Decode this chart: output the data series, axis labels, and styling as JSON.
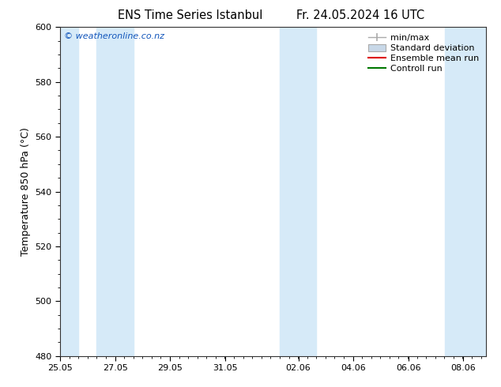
{
  "title_left": "ENS Time Series Istanbul",
  "title_right": "Fr. 24.05.2024 16 UTC",
  "ylabel": "Temperature 850 hPa (°C)",
  "ylim": [
    480,
    600
  ],
  "yticks": [
    480,
    500,
    520,
    540,
    560,
    580,
    600
  ],
  "xlim": [
    0,
    15.5
  ],
  "xtick_labels": [
    "25.05",
    "27.05",
    "29.05",
    "31.05",
    "02.06",
    "04.06",
    "06.06",
    "08.06"
  ],
  "xtick_positions": [
    0.0,
    2.0,
    4.0,
    6.0,
    8.67,
    10.67,
    12.67,
    14.67
  ],
  "shaded_bands": [
    {
      "x_start": 0.0,
      "x_end": 0.67,
      "color": "#d6eaf8"
    },
    {
      "x_start": 1.33,
      "x_end": 2.67,
      "color": "#d6eaf8"
    },
    {
      "x_start": 8.0,
      "x_end": 9.33,
      "color": "#d6eaf8"
    },
    {
      "x_start": 14.0,
      "x_end": 15.5,
      "color": "#d6eaf8"
    }
  ],
  "legend_entries": [
    "min/max",
    "Standard deviation",
    "Ensemble mean run",
    "Controll run"
  ],
  "minmax_color": "#aaaaaa",
  "std_facecolor": "#c8d8e8",
  "std_edgecolor": "#aaaaaa",
  "ensemble_color": "#dd0000",
  "control_color": "#007700",
  "watermark": "© weatheronline.co.nz",
  "watermark_color": "#1155bb",
  "background_color": "#ffffff",
  "plot_bg_color": "#ffffff",
  "title_fontsize": 10.5,
  "ylabel_fontsize": 9,
  "tick_fontsize": 8,
  "legend_fontsize": 8,
  "watermark_fontsize": 8
}
